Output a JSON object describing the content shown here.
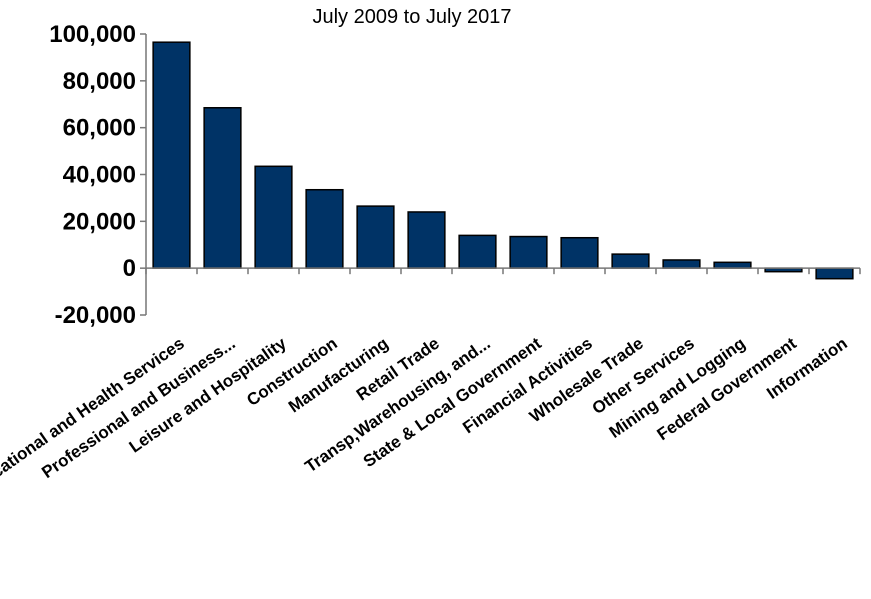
{
  "chart_data": {
    "type": "bar",
    "title": "July 2009 to July 2017",
    "categories": [
      "Educational and Health Services",
      "Professional and Business...",
      "Leisure and Hospitality",
      "Construction",
      "Manufacturing",
      "Retail Trade",
      "Transp,Warehousing, and...",
      "State & Local Government",
      "Financial Activities",
      "Wholesale Trade",
      "Other Services",
      "Mining and Logging",
      "Federal Government",
      "Information"
    ],
    "values": [
      96500,
      68500,
      43500,
      33500,
      26500,
      24000,
      14000,
      13500,
      13000,
      6000,
      3500,
      2500,
      -1500,
      -4500
    ],
    "ylim": [
      -20000,
      100000
    ],
    "yticks": [
      -20000,
      0,
      20000,
      40000,
      60000,
      80000,
      100000
    ],
    "ytick_labels": [
      "-20,000",
      "0",
      "20,000",
      "40,000",
      "60,000",
      "80,000",
      "100,000"
    ],
    "xlabel": "",
    "ylabel": "",
    "bar_color": "#003366",
    "grid": false
  }
}
